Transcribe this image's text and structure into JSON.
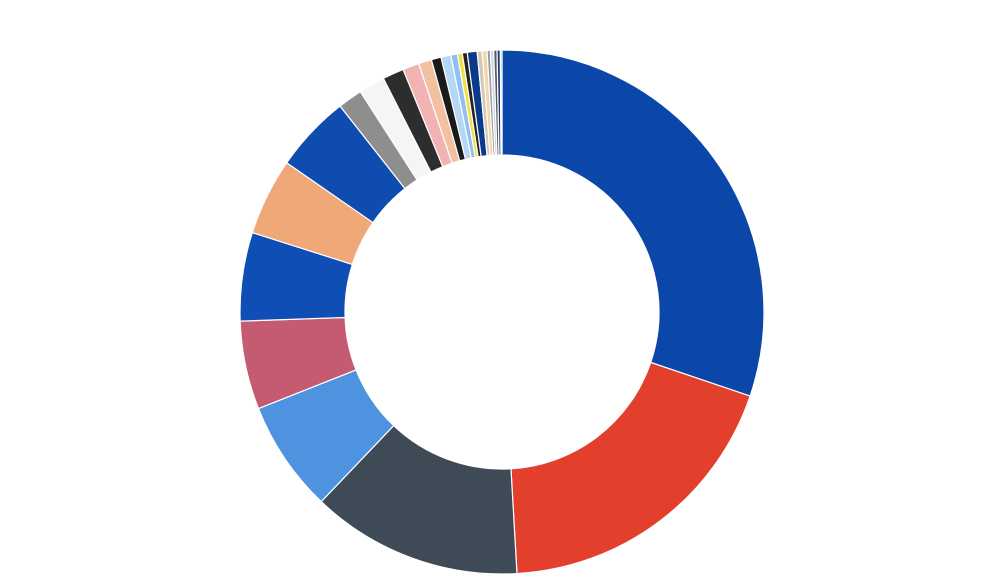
{
  "chart_data": {
    "type": "pie",
    "donut": true,
    "title": "",
    "unit": "percent",
    "legend": "none",
    "slices": [
      {
        "label": "",
        "value": 29.9,
        "color": "#0b47a8"
      },
      {
        "label": "",
        "value": 18.7,
        "color": "#e2402c"
      },
      {
        "label": "",
        "value": 12.9,
        "color": "#3e4a56"
      },
      {
        "label": "",
        "value": 6.8,
        "color": "#4d93df"
      },
      {
        "label": "",
        "value": 5.4,
        "color": "#c55b70"
      },
      {
        "label": "",
        "value": 5.4,
        "color": "#0f4eb4"
      },
      {
        "label": "",
        "value": 4.7,
        "color": "#f0a878"
      },
      {
        "label": "",
        "value": 4.7,
        "color": "#0e4cb0"
      },
      {
        "label": "",
        "value": 1.5,
        "color": "#8e8e8e"
      },
      {
        "label": "",
        "value": 1.6,
        "color": "#f5f5f5"
      },
      {
        "label": "",
        "value": 1.3,
        "color": "#2d2d2d"
      },
      {
        "label": "",
        "value": 1.0,
        "color": "#f2b3b3"
      },
      {
        "label": "",
        "value": 0.8,
        "color": "#f3c0a2"
      },
      {
        "label": "",
        "value": 0.6,
        "color": "#1a1a1a"
      },
      {
        "label": "",
        "value": 0.6,
        "color": "#b6d6f6"
      },
      {
        "label": "",
        "value": 0.4,
        "color": "#8fc1f0"
      },
      {
        "label": "",
        "value": 0.3,
        "color": "#f2e04a"
      },
      {
        "label": "",
        "value": 0.3,
        "color": "#222222"
      },
      {
        "label": "",
        "value": 0.6,
        "color": "#0a3a8a"
      },
      {
        "label": "",
        "value": 0.3,
        "color": "#d6c8b8"
      },
      {
        "label": "",
        "value": 0.3,
        "color": "#f0d6a8"
      },
      {
        "label": "",
        "value": 0.2,
        "color": "#9a9a9a"
      },
      {
        "label": "",
        "value": 0.2,
        "color": "#c8d4ea"
      },
      {
        "label": "",
        "value": 0.2,
        "color": "#5a5a5a"
      },
      {
        "label": "",
        "value": 0.2,
        "color": "#1d3c78"
      },
      {
        "label": "",
        "value": 0.1,
        "color": "#a0b4d8"
      }
    ]
  }
}
